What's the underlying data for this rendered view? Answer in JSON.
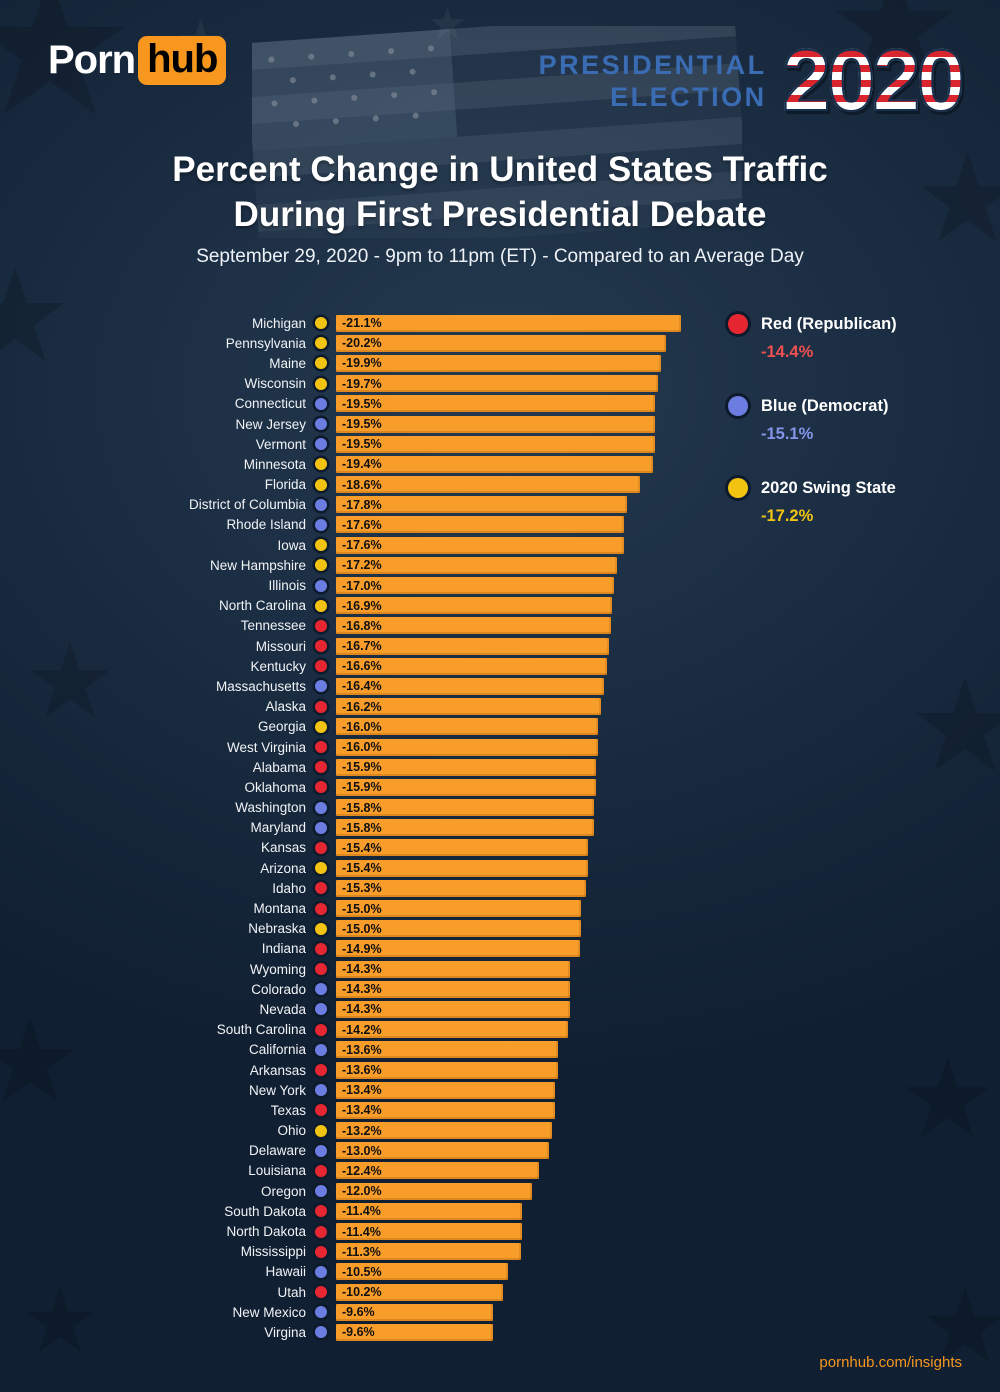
{
  "brand": {
    "logo_part1": "Porn",
    "logo_part2": "hub"
  },
  "header": {
    "event_line1": "PRESIDENTIAL",
    "event_line2": "ELECTION",
    "year": "2020"
  },
  "title": {
    "line1": "Percent Change in United States Traffic",
    "line2": "During First Presidential Debate",
    "subtitle": "September 29, 2020 - 9pm to 11pm (ET) - Compared to an Average Day"
  },
  "legend": {
    "items": [
      {
        "party": "red",
        "label": "Red (Republican)",
        "value": "-14.4%",
        "dot_color": "#e62631",
        "value_color": "#ef5050"
      },
      {
        "party": "blue",
        "label": "Blue (Democrat)",
        "value": "-15.1%",
        "dot_color": "#6b7de0",
        "value_color": "#8495ea"
      },
      {
        "party": "swing",
        "label": "2020 Swing State",
        "value": "-17.2%",
        "dot_color": "#f2c411",
        "value_color": "#f2c411"
      }
    ]
  },
  "footer": {
    "link": "pornhub.com/insights"
  },
  "chart_data": {
    "type": "bar",
    "orientation": "horizontal",
    "title": "Percent Change in United States Traffic During First Presidential Debate",
    "subtitle": "September 29, 2020 - 9pm to 11pm (ET) - Compared to an Average Day",
    "unit": "%",
    "xlim": [
      -22,
      0
    ],
    "bar_color": "#f89d2a",
    "party_colors": {
      "red": "#e62631",
      "blue": "#6b7de0",
      "swing": "#f2c411"
    },
    "party_averages": {
      "red": -14.4,
      "blue": -15.1,
      "swing": -17.2
    },
    "series": [
      {
        "state": "Michigan",
        "party": "swing",
        "value": -21.1
      },
      {
        "state": "Pennsylvania",
        "party": "swing",
        "value": -20.2
      },
      {
        "state": "Maine",
        "party": "swing",
        "value": -19.9
      },
      {
        "state": "Wisconsin",
        "party": "swing",
        "value": -19.7
      },
      {
        "state": "Connecticut",
        "party": "blue",
        "value": -19.5
      },
      {
        "state": "New Jersey",
        "party": "blue",
        "value": -19.5
      },
      {
        "state": "Vermont",
        "party": "blue",
        "value": -19.5
      },
      {
        "state": "Minnesota",
        "party": "swing",
        "value": -19.4
      },
      {
        "state": "Florida",
        "party": "swing",
        "value": -18.6
      },
      {
        "state": "District of Columbia",
        "party": "blue",
        "value": -17.8
      },
      {
        "state": "Rhode Island",
        "party": "blue",
        "value": -17.6
      },
      {
        "state": "Iowa",
        "party": "swing",
        "value": -17.6
      },
      {
        "state": "New Hampshire",
        "party": "swing",
        "value": -17.2
      },
      {
        "state": "Illinois",
        "party": "blue",
        "value": -17.0
      },
      {
        "state": "North Carolina",
        "party": "swing",
        "value": -16.9
      },
      {
        "state": "Tennessee",
        "party": "red",
        "value": -16.8
      },
      {
        "state": "Missouri",
        "party": "red",
        "value": -16.7
      },
      {
        "state": "Kentucky",
        "party": "red",
        "value": -16.6
      },
      {
        "state": "Massachusetts",
        "party": "blue",
        "value": -16.4
      },
      {
        "state": "Alaska",
        "party": "red",
        "value": -16.2
      },
      {
        "state": "Georgia",
        "party": "swing",
        "value": -16.0
      },
      {
        "state": "West Virginia",
        "party": "red",
        "value": -16.0
      },
      {
        "state": "Alabama",
        "party": "red",
        "value": -15.9
      },
      {
        "state": "Oklahoma",
        "party": "red",
        "value": -15.9
      },
      {
        "state": "Washington",
        "party": "blue",
        "value": -15.8
      },
      {
        "state": "Maryland",
        "party": "blue",
        "value": -15.8
      },
      {
        "state": "Kansas",
        "party": "red",
        "value": -15.4
      },
      {
        "state": "Arizona",
        "party": "swing",
        "value": -15.4
      },
      {
        "state": "Idaho",
        "party": "red",
        "value": -15.3
      },
      {
        "state": "Montana",
        "party": "red",
        "value": -15.0
      },
      {
        "state": "Nebraska",
        "party": "swing",
        "value": -15.0
      },
      {
        "state": "Indiana",
        "party": "red",
        "value": -14.9
      },
      {
        "state": "Wyoming",
        "party": "red",
        "value": -14.3
      },
      {
        "state": "Colorado",
        "party": "blue",
        "value": -14.3
      },
      {
        "state": "Nevada",
        "party": "blue",
        "value": -14.3
      },
      {
        "state": "South Carolina",
        "party": "red",
        "value": -14.2
      },
      {
        "state": "California",
        "party": "blue",
        "value": -13.6
      },
      {
        "state": "Arkansas",
        "party": "red",
        "value": -13.6
      },
      {
        "state": "New York",
        "party": "blue",
        "value": -13.4
      },
      {
        "state": "Texas",
        "party": "red",
        "value": -13.4
      },
      {
        "state": "Ohio",
        "party": "swing",
        "value": -13.2
      },
      {
        "state": "Delaware",
        "party": "blue",
        "value": -13.0
      },
      {
        "state": "Louisiana",
        "party": "red",
        "value": -12.4
      },
      {
        "state": "Oregon",
        "party": "blue",
        "value": -12.0
      },
      {
        "state": "South Dakota",
        "party": "red",
        "value": -11.4
      },
      {
        "state": "North Dakota",
        "party": "red",
        "value": -11.4
      },
      {
        "state": "Mississippi",
        "party": "red",
        "value": -11.3
      },
      {
        "state": "Hawaii",
        "party": "blue",
        "value": -10.5
      },
      {
        "state": "Utah",
        "party": "red",
        "value": -10.2
      },
      {
        "state": "New Mexico",
        "party": "blue",
        "value": -9.6
      },
      {
        "state": "Virgina",
        "party": "blue",
        "value": -9.6
      }
    ]
  }
}
